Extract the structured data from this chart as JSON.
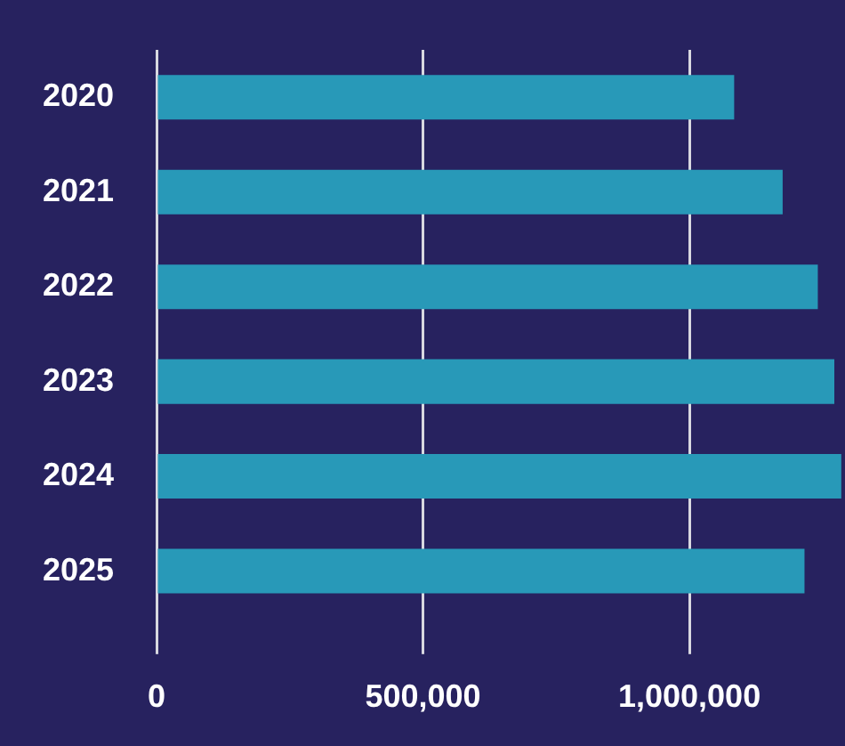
{
  "chart_data": {
    "type": "bar",
    "orientation": "horizontal",
    "categories": [
      "2020",
      "2021",
      "2022",
      "2023",
      "2024",
      "2025"
    ],
    "values": [
      1084000,
      1175000,
      1241000,
      1272000,
      1285000,
      1216000
    ],
    "color": "#2899b8",
    "xlim": [
      0,
      1292000
    ],
    "xticks": [
      {
        "value": 0,
        "label": "0"
      },
      {
        "value": 500000,
        "label": "500,000"
      },
      {
        "value": 1000000,
        "label": "1,000,000"
      }
    ],
    "grid": "x",
    "legend": false
  }
}
